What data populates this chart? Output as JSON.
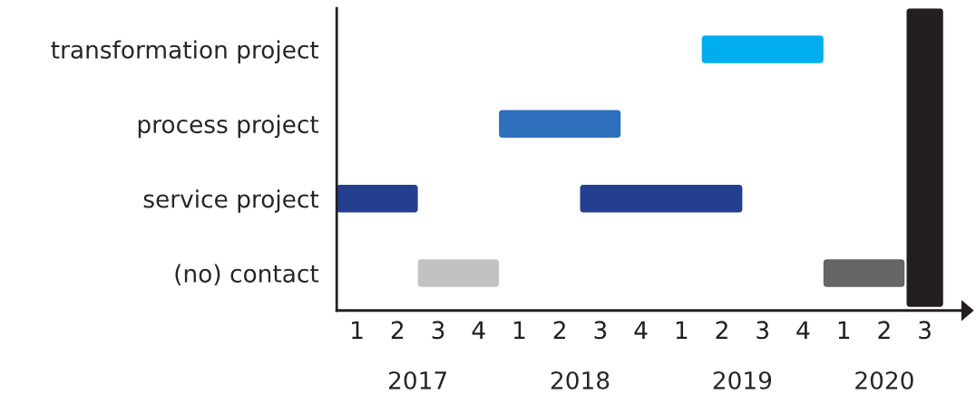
{
  "chart_data": {
    "type": "bar",
    "orientation": "horizontal",
    "categories": [
      "transformation project",
      "process project",
      "service project",
      "(no) contact"
    ],
    "series": [
      {
        "values": [
          0.75,
          0.75,
          0.5,
          0.5
        ],
        "base": [
          2019.25,
          2018,
          2017,
          2017.5
        ],
        "colors": [
          "#00aeef",
          "#2e70bc",
          "#243f8f",
          "#c2c2c2"
        ]
      },
      {
        "values": [
          null,
          null,
          1,
          0.5
        ],
        "base": [
          null,
          null,
          2018.5,
          2020
        ],
        "colors": [
          null,
          null,
          "#243f8f",
          "#666666"
        ]
      }
    ],
    "xlim": [
      2017,
      2020.85
    ],
    "xticks": [
      {
        "value": 2017.5,
        "label": "2017"
      },
      {
        "value": 2018.5,
        "label": "2018"
      },
      {
        "value": 2019.5,
        "label": "2019"
      },
      {
        "value": 2020.375,
        "label": "2020"
      }
    ],
    "annotations": [
      "1",
      "2",
      "3",
      "4",
      "1",
      "2",
      "3",
      "4",
      "1",
      "2",
      "3",
      "4",
      "1",
      "2",
      "3"
    ],
    "bands": [
      {
        "axis": "x",
        "from": 2020.5,
        "to": 2020.75,
        "color": "#231f20"
      }
    ],
    "grid": false,
    "legend": false
  }
}
